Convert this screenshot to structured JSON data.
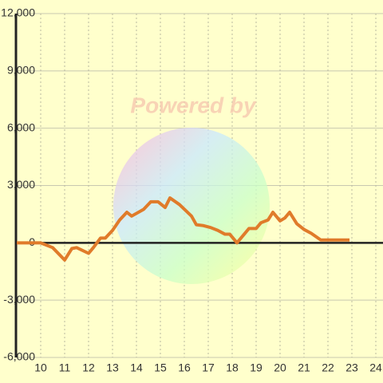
{
  "chart_data": {
    "type": "line",
    "watermark": "Powered by",
    "x": [
      9,
      10,
      10.5,
      11,
      11.3,
      11.5,
      12,
      12.2,
      12.5,
      12.7,
      13,
      13.3,
      13.6,
      13.8,
      14.3,
      14.6,
      14.9,
      15.2,
      15.4,
      15.8,
      16.3,
      16.5,
      16.8,
      17.1,
      17.4,
      17.7,
      17.9,
      18.2,
      18.5,
      18.7,
      19,
      19.2,
      19.5,
      19.7,
      20,
      20.2,
      20.4,
      20.7,
      21,
      21.3,
      21.7,
      22.9
    ],
    "series": [
      {
        "color": "#e07b2a",
        "values": [
          0,
          0,
          -250,
          -900,
          -300,
          -250,
          -550,
          -250,
          250,
          250,
          650,
          1200,
          1600,
          1400,
          1750,
          2150,
          2150,
          1850,
          2350,
          2000,
          1400,
          950,
          900,
          800,
          650,
          450,
          450,
          0,
          450,
          750,
          750,
          1050,
          1200,
          1600,
          1150,
          1300,
          1600,
          1000,
          700,
          500,
          150,
          150
        ]
      }
    ],
    "xlim": [
      9,
      24.3
    ],
    "xticks": [
      10,
      11,
      12,
      13,
      14,
      15,
      16,
      17,
      18,
      19,
      20,
      21,
      22,
      23,
      24
    ],
    "ylim": [
      -6000,
      12000
    ],
    "yticks": [
      {
        "value": -6000,
        "label": "-6,000"
      },
      {
        "value": -3000,
        "label": "-3,000"
      },
      0,
      {
        "value": 3000,
        "label": "3,000"
      },
      {
        "value": 6000,
        "label": "6,000"
      },
      {
        "value": 9000,
        "label": "9,000"
      },
      {
        "value": 12000,
        "label": "12,000"
      }
    ],
    "grid": true
  }
}
